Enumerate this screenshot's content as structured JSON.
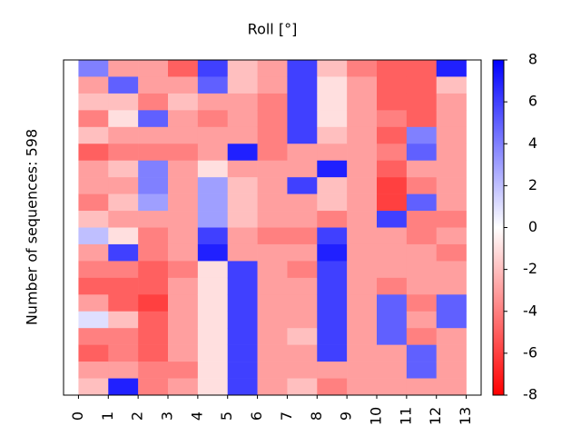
{
  "chart_data": {
    "type": "heatmap",
    "title": "Roll [°]",
    "y_label": "Number of sequences: 598",
    "xlim": [
      -0.5,
      13.5
    ],
    "xticks": [
      0,
      1,
      2,
      3,
      4,
      5,
      6,
      7,
      8,
      9,
      10,
      11,
      12,
      13
    ],
    "colormap": "bwr",
    "clim": [
      -8,
      8
    ],
    "colorbar_ticks": [
      -8,
      -6,
      -4,
      -2,
      0,
      2,
      4,
      6,
      8
    ],
    "values": [
      [
        4,
        -3,
        -2,
        -4,
        -2,
        -5,
        -3,
        -3,
        -4,
        -2,
        2,
        -3,
        -4,
        -5,
        -3,
        1,
        -4,
        -5,
        -3,
        -2
      ],
      [
        -3,
        5,
        -2,
        -1,
        -3,
        -4,
        -2,
        -3,
        -2,
        -3,
        -1,
        6,
        -4,
        -5,
        -5,
        -2,
        -4,
        -4,
        -3,
        7
      ],
      [
        -3,
        -3,
        -4,
        5,
        -3,
        -4,
        4,
        4,
        3,
        -3,
        -4,
        -4,
        -5,
        -5,
        -6,
        -5,
        -5,
        -5,
        -4,
        -4
      ],
      [
        -5,
        -3,
        -2,
        -3,
        -3,
        -4,
        -3,
        -3,
        -3,
        -3,
        -3,
        -3,
        -4,
        -3,
        -3,
        -3,
        -3,
        -3,
        -4,
        -3
      ],
      [
        6,
        5,
        -3,
        -4,
        -3,
        -3,
        -1,
        3,
        3,
        3,
        6,
        7,
        -1,
        -1,
        -1,
        -1,
        -1,
        -1,
        -1,
        -1
      ],
      [
        -2,
        -2,
        -3,
        -3,
        -3,
        7,
        -3,
        -2,
        -2,
        -2,
        -3,
        -3,
        6,
        6,
        6,
        6,
        6,
        6,
        6,
        6
      ],
      [
        -3,
        -3,
        -4,
        -4,
        -4,
        -4,
        -3,
        -3,
        -3,
        -3,
        -4,
        -3,
        -3,
        -3,
        -3,
        -3,
        -3,
        -3,
        -3,
        -3
      ],
      [
        6,
        6,
        6,
        6,
        6,
        -3,
        -3,
        6,
        -3,
        -3,
        -4,
        -3,
        -4,
        -3,
        -3,
        -3,
        -2,
        -3,
        -3,
        -2
      ],
      [
        -2,
        -1,
        -1,
        -1,
        -2,
        -3,
        7,
        -2,
        -2,
        -4,
        6,
        7,
        6,
        6,
        6,
        6,
        6,
        6,
        -3,
        -4
      ],
      [
        -4,
        -3,
        -3,
        -3,
        -3,
        -3,
        -3,
        -3,
        -3,
        -3,
        -3,
        -3,
        -3,
        -3,
        -3,
        -3,
        -3,
        -3,
        -3,
        -3
      ],
      [
        -5,
        -5,
        -5,
        -4,
        -5,
        -4,
        -5,
        -6,
        -6,
        6,
        -3,
        -3,
        -3,
        -4,
        5,
        5,
        5,
        -3,
        -3,
        -3
      ],
      [
        -5,
        -5,
        -5,
        -5,
        4,
        5,
        -3,
        -4,
        5,
        -4,
        -4,
        -3,
        -3,
        -3,
        -4,
        -3,
        -4,
        5,
        5,
        -3
      ],
      [
        7,
        -2,
        -3,
        -3,
        -3,
        -3,
        -3,
        -3,
        -3,
        -4,
        -3,
        -4,
        -3,
        -3,
        5,
        5,
        -3,
        -3,
        -3,
        -3
      ]
    ]
  }
}
